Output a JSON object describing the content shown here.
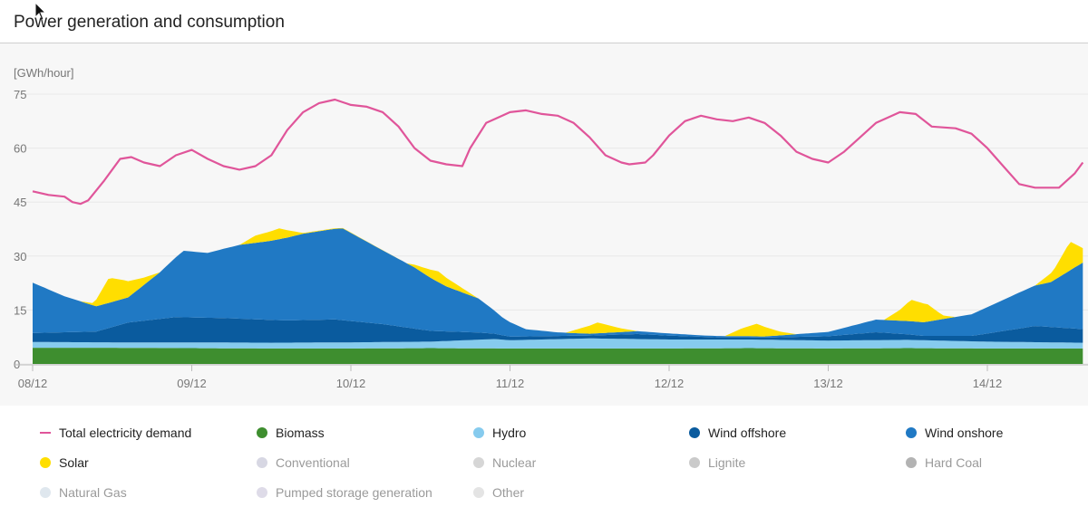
{
  "title": "Power generation and consumption",
  "chart_data": {
    "type": "area",
    "unit_label": "[GWh/hour]",
    "ylim": [
      0,
      75
    ],
    "yticks": [
      0,
      15,
      30,
      45,
      60,
      75
    ],
    "xlim": [
      0,
      6.6
    ],
    "xticks": [
      {
        "x": 0,
        "label": "08/12"
      },
      {
        "x": 1,
        "label": "09/12"
      },
      {
        "x": 2,
        "label": "10/12"
      },
      {
        "x": 3,
        "label": "11/12"
      },
      {
        "x": 4,
        "label": "12/12"
      },
      {
        "x": 5,
        "label": "13/12"
      },
      {
        "x": 6,
        "label": "14/12"
      }
    ],
    "x_unit": "days",
    "grid": true,
    "stacked_series": [
      {
        "name": "Biomass",
        "color": "#3e8e2f",
        "points": [
          [
            0,
            4.5
          ],
          [
            0.5,
            4.5
          ],
          [
            1,
            4.4
          ],
          [
            1.5,
            4.3
          ],
          [
            2,
            4.3
          ],
          [
            2.5,
            4.4
          ],
          [
            3,
            4.3
          ],
          [
            3.5,
            4.3
          ],
          [
            4,
            4.3
          ],
          [
            4.5,
            4.4
          ],
          [
            5,
            4.3
          ],
          [
            5.5,
            4.4
          ],
          [
            6,
            4.3
          ],
          [
            6.6,
            4.3
          ]
        ]
      },
      {
        "name": "Hydro",
        "color": "#86cbee",
        "points": [
          [
            0,
            1.6
          ],
          [
            0.5,
            1.5
          ],
          [
            1,
            1.6
          ],
          [
            1.5,
            1.6
          ],
          [
            2,
            1.7
          ],
          [
            2.5,
            1.8
          ],
          [
            2.9,
            2.6
          ],
          [
            3,
            2.3
          ],
          [
            3.5,
            2.8
          ],
          [
            4,
            2.5
          ],
          [
            4.5,
            2.4
          ],
          [
            5,
            2.2
          ],
          [
            5.5,
            2.3
          ],
          [
            6,
            1.9
          ],
          [
            6.6,
            1.6
          ]
        ]
      },
      {
        "name": "Wind offshore",
        "color": "#0a5b9e",
        "points": [
          [
            0,
            2.5
          ],
          [
            0.4,
            3.0
          ],
          [
            0.6,
            5.5
          ],
          [
            0.9,
            7.0
          ],
          [
            1.2,
            6.8
          ],
          [
            1.6,
            6.2
          ],
          [
            1.9,
            6.4
          ],
          [
            2.2,
            5.0
          ],
          [
            2.5,
            3.0
          ],
          [
            2.8,
            2.0
          ],
          [
            3.0,
            1.0
          ],
          [
            3.5,
            0.8
          ],
          [
            3.8,
            1.4
          ],
          [
            4.3,
            0.6
          ],
          [
            4.6,
            0.6
          ],
          [
            5.0,
            1.2
          ],
          [
            5.3,
            2.2
          ],
          [
            5.6,
            1.2
          ],
          [
            5.9,
            1.5
          ],
          [
            6.3,
            4.5
          ],
          [
            6.6,
            3.8
          ]
        ]
      },
      {
        "name": "Wind onshore",
        "color": "#2079c4",
        "points": [
          [
            0,
            14.0
          ],
          [
            0.2,
            10.0
          ],
          [
            0.4,
            7.0
          ],
          [
            0.6,
            7.0
          ],
          [
            0.8,
            13.0
          ],
          [
            0.95,
            18.5
          ],
          [
            1.1,
            18.0
          ],
          [
            1.3,
            20.5
          ],
          [
            1.5,
            22.0
          ],
          [
            1.7,
            24.0
          ],
          [
            1.95,
            25.5
          ],
          [
            2.2,
            20.5
          ],
          [
            2.4,
            17.0
          ],
          [
            2.6,
            12.5
          ],
          [
            2.8,
            9.5
          ],
          [
            2.95,
            5.0
          ],
          [
            3.1,
            2.0
          ],
          [
            3.3,
            1.0
          ],
          [
            3.5,
            0.5
          ],
          [
            3.8,
            0.8
          ],
          [
            4.2,
            0.4
          ],
          [
            4.6,
            0.3
          ],
          [
            5.0,
            1.2
          ],
          [
            5.3,
            3.5
          ],
          [
            5.6,
            3.8
          ],
          [
            5.9,
            6.0
          ],
          [
            6.2,
            10.0
          ],
          [
            6.4,
            12.5
          ],
          [
            6.6,
            18.5
          ]
        ]
      },
      {
        "name": "Solar",
        "color": "#ffde00",
        "points": [
          [
            0,
            0
          ],
          [
            0.3,
            0
          ],
          [
            0.38,
            0.6
          ],
          [
            0.48,
            7.0
          ],
          [
            0.58,
            5.0
          ],
          [
            0.7,
            2.0
          ],
          [
            0.8,
            0
          ],
          [
            1.3,
            0
          ],
          [
            1.4,
            2.0
          ],
          [
            1.55,
            3.0
          ],
          [
            1.7,
            0.2
          ],
          [
            2.35,
            0
          ],
          [
            2.45,
            1.5
          ],
          [
            2.55,
            3.0
          ],
          [
            2.7,
            1.2
          ],
          [
            2.8,
            0
          ],
          [
            3.35,
            0
          ],
          [
            3.45,
            1.5
          ],
          [
            3.55,
            3.0
          ],
          [
            3.7,
            1.0
          ],
          [
            3.8,
            0
          ],
          [
            4.35,
            0
          ],
          [
            4.45,
            2.0
          ],
          [
            4.55,
            3.5
          ],
          [
            4.7,
            1.0
          ],
          [
            4.8,
            0
          ],
          [
            5.35,
            0
          ],
          [
            5.45,
            3.0
          ],
          [
            5.52,
            6.0
          ],
          [
            5.62,
            5.0
          ],
          [
            5.72,
            1.0
          ],
          [
            5.8,
            0
          ],
          [
            6.3,
            0
          ],
          [
            6.42,
            3.0
          ],
          [
            6.52,
            8.0
          ],
          [
            6.6,
            4.0
          ]
        ]
      }
    ],
    "demand_series": {
      "name": "Total electricity demand",
      "color": "#e0559a",
      "points": [
        [
          0,
          48
        ],
        [
          0.1,
          47
        ],
        [
          0.2,
          46.5
        ],
        [
          0.25,
          45
        ],
        [
          0.3,
          44.5
        ],
        [
          0.35,
          45.5
        ],
        [
          0.45,
          51
        ],
        [
          0.55,
          57
        ],
        [
          0.62,
          57.5
        ],
        [
          0.7,
          56
        ],
        [
          0.8,
          55
        ],
        [
          0.9,
          58
        ],
        [
          1.0,
          59.5
        ],
        [
          1.1,
          57
        ],
        [
          1.2,
          55
        ],
        [
          1.3,
          54
        ],
        [
          1.4,
          55
        ],
        [
          1.5,
          58
        ],
        [
          1.6,
          65
        ],
        [
          1.7,
          70
        ],
        [
          1.8,
          72.5
        ],
        [
          1.9,
          73.5
        ],
        [
          2.0,
          72
        ],
        [
          2.1,
          71.5
        ],
        [
          2.2,
          70
        ],
        [
          2.3,
          66
        ],
        [
          2.4,
          60
        ],
        [
          2.5,
          56.5
        ],
        [
          2.6,
          55.5
        ],
        [
          2.7,
          55
        ],
        [
          2.75,
          60
        ],
        [
          2.85,
          67
        ],
        [
          3.0,
          70
        ],
        [
          3.1,
          70.5
        ],
        [
          3.2,
          69.5
        ],
        [
          3.3,
          69
        ],
        [
          3.4,
          67
        ],
        [
          3.5,
          63
        ],
        [
          3.6,
          58
        ],
        [
          3.7,
          56
        ],
        [
          3.75,
          55.5
        ],
        [
          3.85,
          56
        ],
        [
          3.9,
          58
        ],
        [
          4.0,
          63.5
        ],
        [
          4.1,
          67.5
        ],
        [
          4.2,
          69
        ],
        [
          4.3,
          68
        ],
        [
          4.4,
          67.5
        ],
        [
          4.5,
          68.5
        ],
        [
          4.6,
          67
        ],
        [
          4.7,
          63.5
        ],
        [
          4.8,
          59
        ],
        [
          4.9,
          57
        ],
        [
          5.0,
          56
        ],
        [
          5.1,
          59
        ],
        [
          5.2,
          63
        ],
        [
          5.3,
          67
        ],
        [
          5.45,
          70
        ],
        [
          5.55,
          69.5
        ],
        [
          5.65,
          66
        ],
        [
          5.8,
          65.5
        ],
        [
          5.9,
          64
        ],
        [
          6.0,
          60
        ],
        [
          6.1,
          55
        ],
        [
          6.2,
          50
        ],
        [
          6.3,
          49
        ],
        [
          6.45,
          49
        ],
        [
          6.55,
          53
        ],
        [
          6.6,
          56
        ]
      ]
    }
  },
  "legend": [
    {
      "label": "Total electricity demand",
      "color": "#e0559a",
      "style": "line",
      "active": true
    },
    {
      "label": "Biomass",
      "color": "#3e8e2f",
      "style": "dot",
      "active": true
    },
    {
      "label": "Hydro",
      "color": "#86cbee",
      "style": "dot",
      "active": true
    },
    {
      "label": "Wind offshore",
      "color": "#0a5b9e",
      "style": "dot",
      "active": true
    },
    {
      "label": "Wind onshore",
      "color": "#2079c4",
      "style": "dot",
      "active": true
    },
    {
      "label": "Solar",
      "color": "#ffde00",
      "style": "dot",
      "active": true
    },
    {
      "label": "Conventional",
      "color": "#d7d7e3",
      "style": "dot",
      "active": false
    },
    {
      "label": "Nuclear",
      "color": "#d6d6d6",
      "style": "dot",
      "active": false
    },
    {
      "label": "Lignite",
      "color": "#cacaca",
      "style": "dot",
      "active": false
    },
    {
      "label": "Hard Coal",
      "color": "#b3b3b3",
      "style": "dot",
      "active": false
    },
    {
      "label": "Natural Gas",
      "color": "#dfe7ee",
      "style": "dot",
      "active": false
    },
    {
      "label": "Pumped storage generation",
      "color": "#dedbe8",
      "style": "dot",
      "active": false
    },
    {
      "label": "Other",
      "color": "#e4e4e4",
      "style": "dot",
      "active": false
    }
  ]
}
